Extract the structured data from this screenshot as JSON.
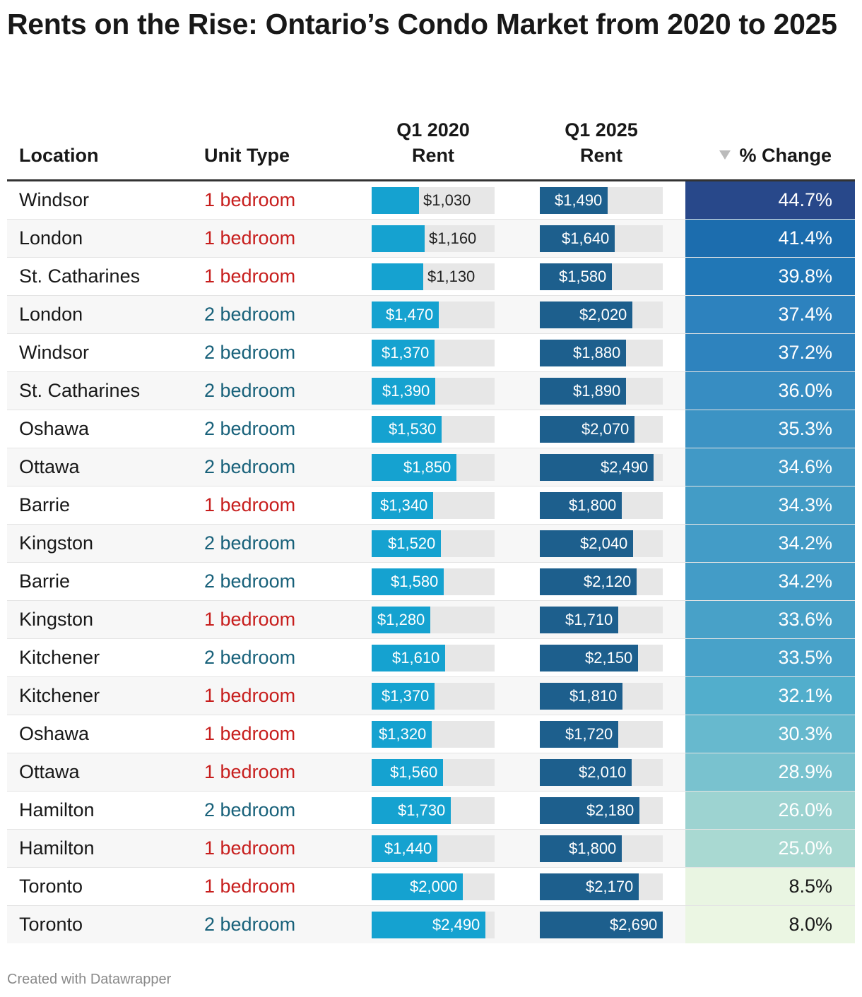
{
  "title": "Rents on the Rise: Ontario’s Condo Market from 2020 to 2025",
  "footer": "Created with Datawrapper",
  "colors": {
    "one_bedroom": "#c71e1d",
    "two_bedroom": "#18617a",
    "bar_2020": "#15a2d0",
    "bar_2025": "#1d5f8d",
    "bar_background": "#e7e7e7"
  },
  "chart_data": {
    "type": "table",
    "title": "Rents on the Rise: Ontario’s Condo Market from 2020 to 2025",
    "columns": [
      "Location",
      "Unit Type",
      "Q1 2020 Rent",
      "Q1 2025 Rent",
      "% Change"
    ],
    "header_lines": {
      "location": "Location",
      "unit_type": "Unit Type",
      "q1_2020": [
        "Q1 2020",
        "Rent"
      ],
      "q1_2025": [
        "Q1 2025",
        "Rent"
      ],
      "pct_change": "% Change"
    },
    "sort": {
      "column": "% Change",
      "direction": "descending"
    },
    "bar_scale_max": 2690,
    "rows": [
      {
        "location": "Windsor",
        "unit_type": "1 bedroom",
        "rent_2020": 1030,
        "rent_2025": 1490,
        "pct_change": 44.7,
        "rent_2020_label": "$1,030",
        "rent_2025_label": "$1,490",
        "pct_label": "44.7%"
      },
      {
        "location": "London",
        "unit_type": "1 bedroom",
        "rent_2020": 1160,
        "rent_2025": 1640,
        "pct_change": 41.4,
        "rent_2020_label": "$1,160",
        "rent_2025_label": "$1,640",
        "pct_label": "41.4%"
      },
      {
        "location": "St. Catharines",
        "unit_type": "1 bedroom",
        "rent_2020": 1130,
        "rent_2025": 1580,
        "pct_change": 39.8,
        "rent_2020_label": "$1,130",
        "rent_2025_label": "$1,580",
        "pct_label": "39.8%"
      },
      {
        "location": "London",
        "unit_type": "2 bedroom",
        "rent_2020": 1470,
        "rent_2025": 2020,
        "pct_change": 37.4,
        "rent_2020_label": "$1,470",
        "rent_2025_label": "$2,020",
        "pct_label": "37.4%"
      },
      {
        "location": "Windsor",
        "unit_type": "2 bedroom",
        "rent_2020": 1370,
        "rent_2025": 1880,
        "pct_change": 37.2,
        "rent_2020_label": "$1,370",
        "rent_2025_label": "$1,880",
        "pct_label": "37.2%"
      },
      {
        "location": "St. Catharines",
        "unit_type": "2 bedroom",
        "rent_2020": 1390,
        "rent_2025": 1890,
        "pct_change": 36.0,
        "rent_2020_label": "$1,390",
        "rent_2025_label": "$1,890",
        "pct_label": "36.0%"
      },
      {
        "location": "Oshawa",
        "unit_type": "2 bedroom",
        "rent_2020": 1530,
        "rent_2025": 2070,
        "pct_change": 35.3,
        "rent_2020_label": "$1,530",
        "rent_2025_label": "$2,070",
        "pct_label": "35.3%"
      },
      {
        "location": "Ottawa",
        "unit_type": "2 bedroom",
        "rent_2020": 1850,
        "rent_2025": 2490,
        "pct_change": 34.6,
        "rent_2020_label": "$1,850",
        "rent_2025_label": "$2,490",
        "pct_label": "34.6%"
      },
      {
        "location": "Barrie",
        "unit_type": "1 bedroom",
        "rent_2020": 1340,
        "rent_2025": 1800,
        "pct_change": 34.3,
        "rent_2020_label": "$1,340",
        "rent_2025_label": "$1,800",
        "pct_label": "34.3%"
      },
      {
        "location": "Kingston",
        "unit_type": "2 bedroom",
        "rent_2020": 1520,
        "rent_2025": 2040,
        "pct_change": 34.2,
        "rent_2020_label": "$1,520",
        "rent_2025_label": "$2,040",
        "pct_label": "34.2%"
      },
      {
        "location": "Barrie",
        "unit_type": "2 bedroom",
        "rent_2020": 1580,
        "rent_2025": 2120,
        "pct_change": 34.2,
        "rent_2020_label": "$1,580",
        "rent_2025_label": "$2,120",
        "pct_label": "34.2%"
      },
      {
        "location": "Kingston",
        "unit_type": "1 bedroom",
        "rent_2020": 1280,
        "rent_2025": 1710,
        "pct_change": 33.6,
        "rent_2020_label": "$1,280",
        "rent_2025_label": "$1,710",
        "pct_label": "33.6%"
      },
      {
        "location": "Kitchener",
        "unit_type": "2 bedroom",
        "rent_2020": 1610,
        "rent_2025": 2150,
        "pct_change": 33.5,
        "rent_2020_label": "$1,610",
        "rent_2025_label": "$2,150",
        "pct_label": "33.5%"
      },
      {
        "location": "Kitchener",
        "unit_type": "1 bedroom",
        "rent_2020": 1370,
        "rent_2025": 1810,
        "pct_change": 32.1,
        "rent_2020_label": "$1,370",
        "rent_2025_label": "$1,810",
        "pct_label": "32.1%"
      },
      {
        "location": "Oshawa",
        "unit_type": "1 bedroom",
        "rent_2020": 1320,
        "rent_2025": 1720,
        "pct_change": 30.3,
        "rent_2020_label": "$1,320",
        "rent_2025_label": "$1,720",
        "pct_label": "30.3%"
      },
      {
        "location": "Ottawa",
        "unit_type": "1 bedroom",
        "rent_2020": 1560,
        "rent_2025": 2010,
        "pct_change": 28.9,
        "rent_2020_label": "$1,560",
        "rent_2025_label": "$2,010",
        "pct_label": "28.9%"
      },
      {
        "location": "Hamilton",
        "unit_type": "2 bedroom",
        "rent_2020": 1730,
        "rent_2025": 2180,
        "pct_change": 26.0,
        "rent_2020_label": "$1,730",
        "rent_2025_label": "$2,180",
        "pct_label": "26.0%"
      },
      {
        "location": "Hamilton",
        "unit_type": "1 bedroom",
        "rent_2020": 1440,
        "rent_2025": 1800,
        "pct_change": 25.0,
        "rent_2020_label": "$1,440",
        "rent_2025_label": "$1,800",
        "pct_label": "25.0%"
      },
      {
        "location": "Toronto",
        "unit_type": "1 bedroom",
        "rent_2020": 2000,
        "rent_2025": 2170,
        "pct_change": 8.5,
        "rent_2020_label": "$2,000",
        "rent_2025_label": "$2,170",
        "pct_label": "8.5%"
      },
      {
        "location": "Toronto",
        "unit_type": "2 bedroom",
        "rent_2020": 2490,
        "rent_2025": 2690,
        "pct_change": 8.0,
        "rent_2020_label": "$2,490",
        "rent_2025_label": "$2,690",
        "pct_label": "8.0%"
      }
    ]
  }
}
